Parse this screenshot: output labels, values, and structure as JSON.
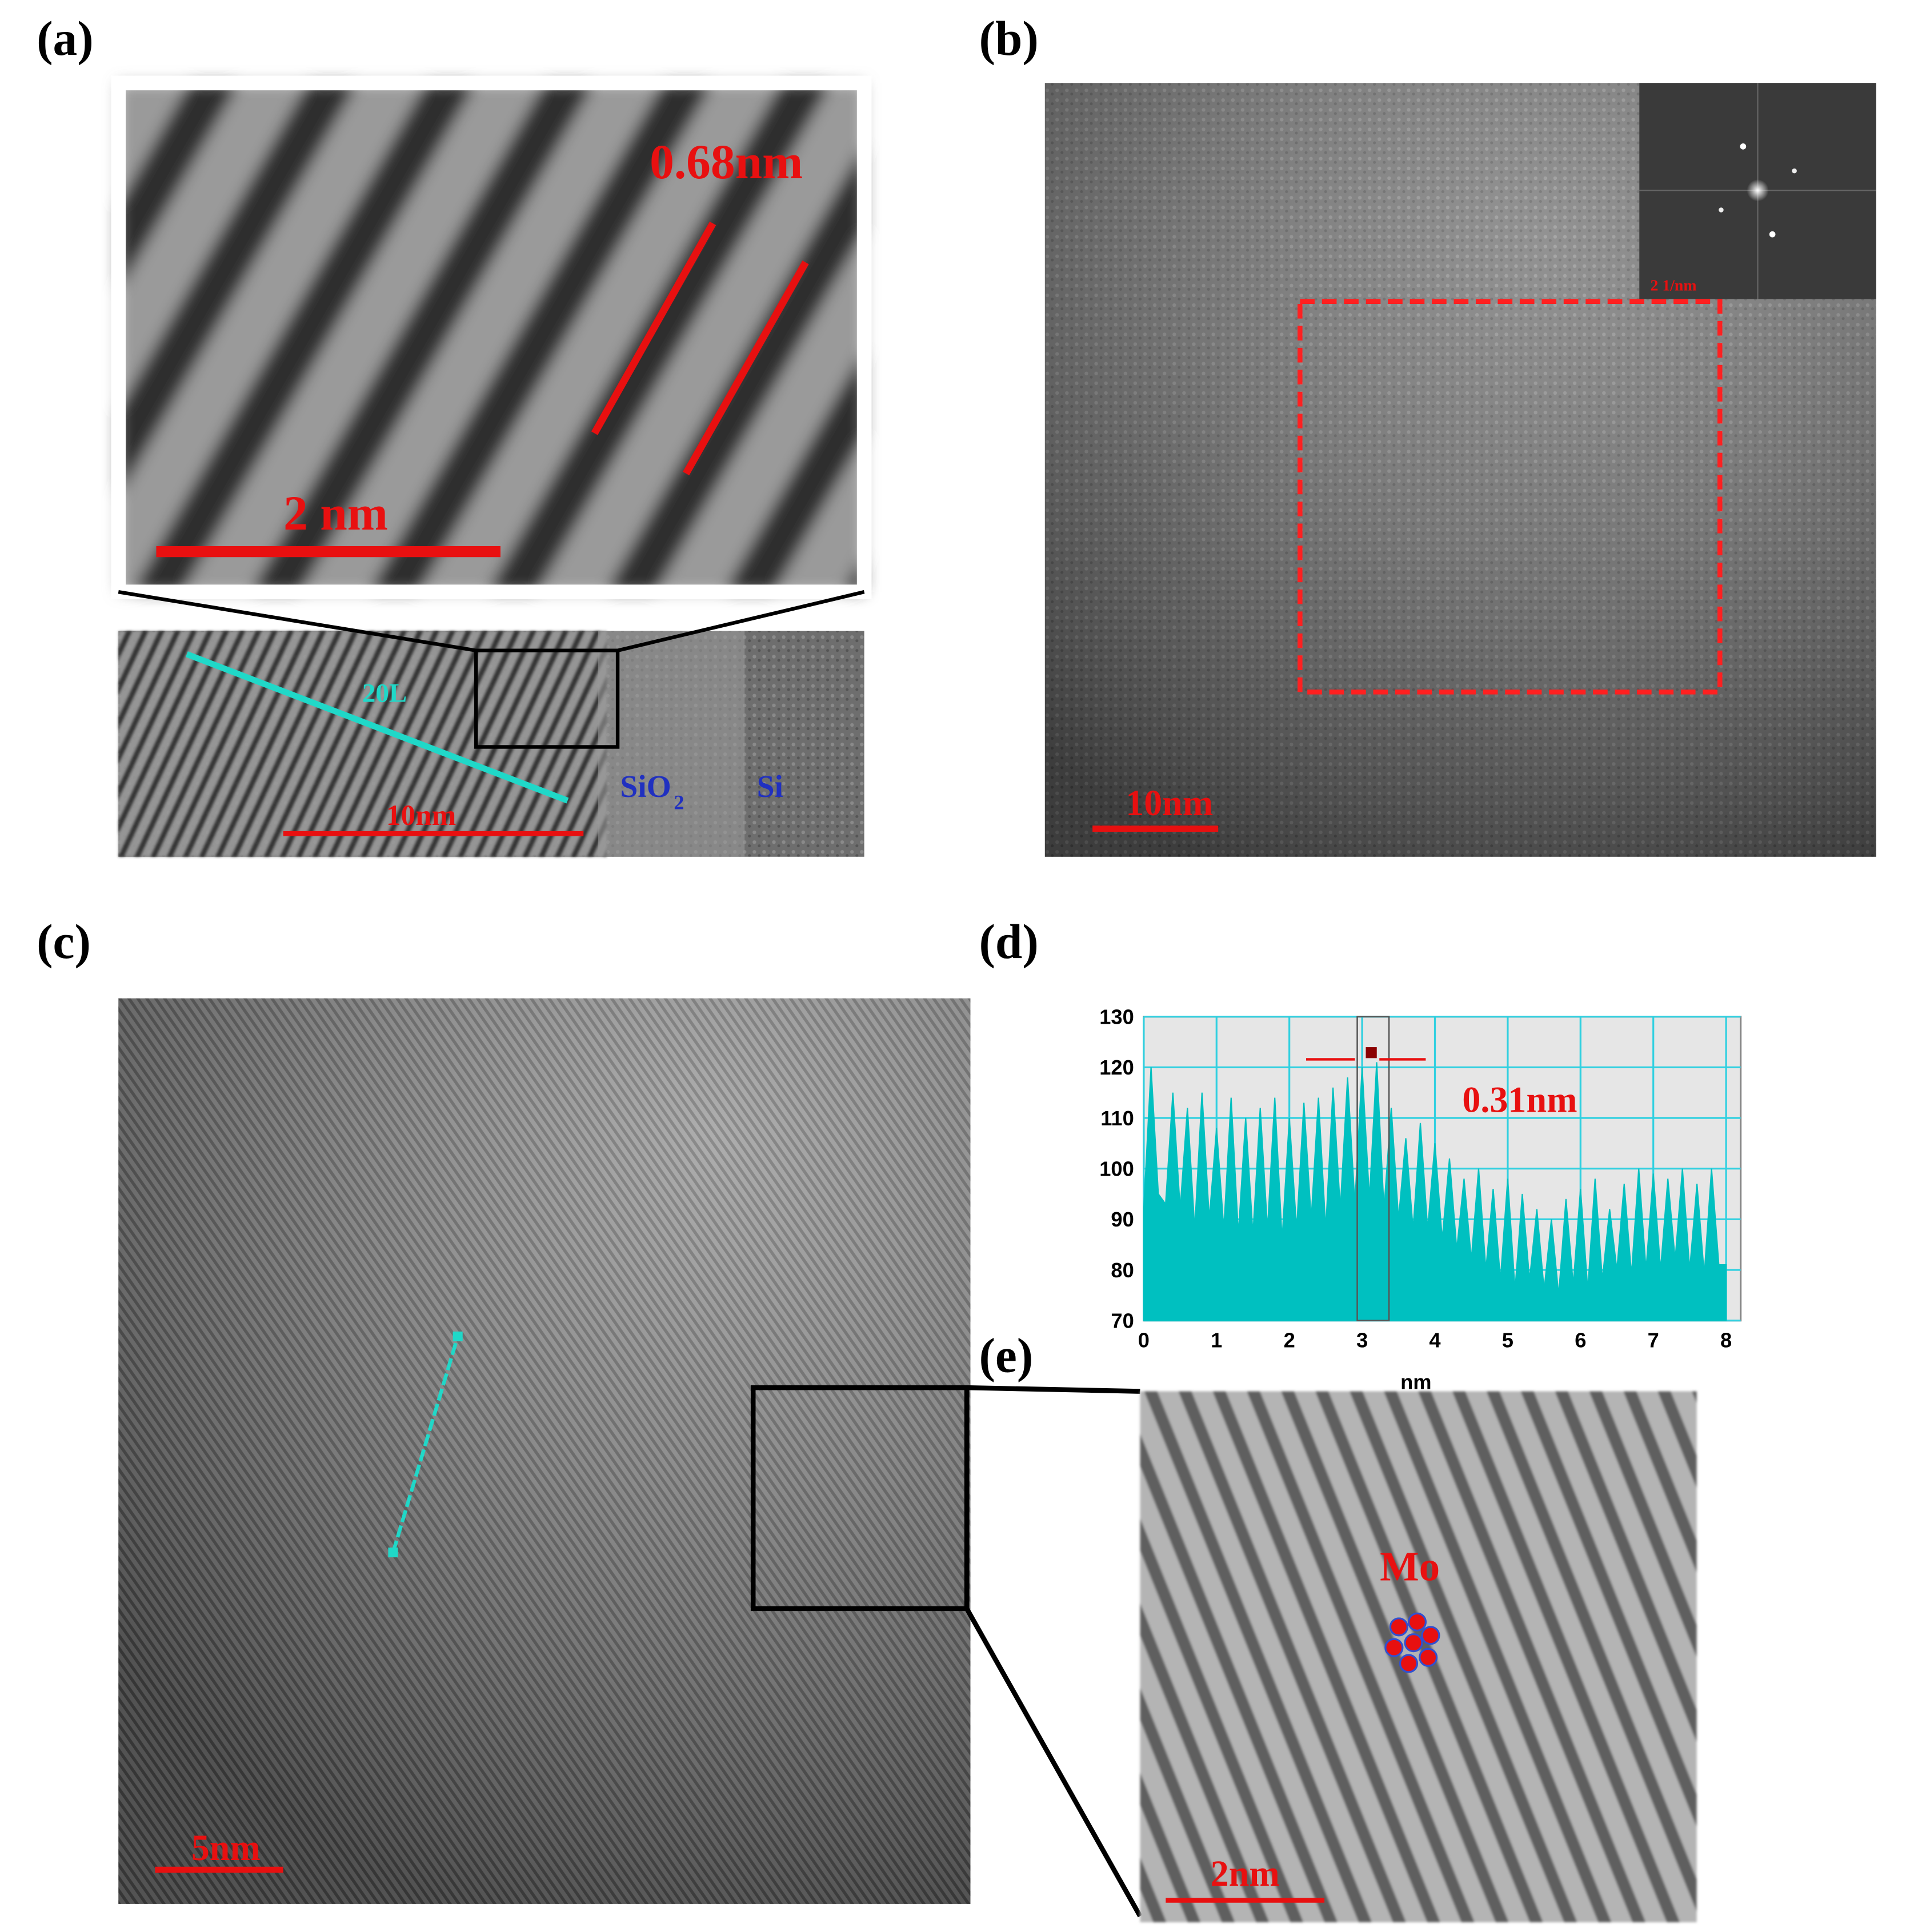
{
  "panels": {
    "a": {
      "label": "(a)",
      "spacing": "0.68nm",
      "zoom_scale": "2 nm",
      "layers": "20L",
      "scale": "10nm",
      "oxide": "SiO",
      "oxide_subscript": "2",
      "substrate": "Si"
    },
    "b": {
      "label": "(b)",
      "scale": "10nm",
      "fft_scale": "2 1/nm"
    },
    "c": {
      "label": "(c)",
      "scale": "5nm"
    },
    "d": {
      "label": "(d)"
    },
    "e": {
      "label": "(e)",
      "atom": "Mo",
      "scale": "2nm"
    }
  },
  "chart_data": {
    "type": "area",
    "xlabel": "nm",
    "annotation": "0.31nm",
    "color": "#00c0c0",
    "grid": true,
    "x": [
      0,
      0.1,
      0.2,
      0.3,
      0.4,
      0.5,
      0.6,
      0.7,
      0.8,
      0.9,
      1,
      1.1,
      1.2,
      1.3,
      1.4,
      1.5,
      1.6,
      1.7,
      1.8,
      1.9,
      2,
      2.1,
      2.2,
      2.3,
      2.4,
      2.5,
      2.6,
      2.7,
      2.8,
      2.9,
      3,
      3.1,
      3.2,
      3.3,
      3.4,
      3.5,
      3.6,
      3.7,
      3.8,
      3.9,
      4,
      4.1,
      4.2,
      4.3,
      4.4,
      4.5,
      4.6,
      4.7,
      4.8,
      4.9,
      5,
      5.1,
      5.2,
      5.3,
      5.4,
      5.5,
      5.6,
      5.7,
      5.8,
      5.9,
      6,
      6.1,
      6.2,
      6.3,
      6.4,
      6.5,
      6.6,
      6.7,
      6.8,
      6.9,
      7,
      7.1,
      7.2,
      7.3,
      7.4,
      7.5,
      7.6,
      7.7,
      7.8,
      7.9,
      8
    ],
    "values": [
      92,
      120,
      95,
      93,
      115,
      92,
      112,
      88,
      115,
      90,
      108,
      88,
      114,
      87,
      110,
      87,
      112,
      88,
      114,
      86,
      110,
      88,
      113,
      90,
      114,
      88,
      116,
      92,
      118,
      93,
      120,
      94,
      121,
      92,
      112,
      90,
      106,
      88,
      109,
      88,
      105,
      86,
      102,
      84,
      98,
      82,
      100,
      80,
      96,
      78,
      98,
      76,
      95,
      78,
      92,
      76,
      90,
      75,
      94,
      77,
      96,
      76,
      98,
      78,
      92,
      80,
      97,
      79,
      100,
      80,
      99,
      80,
      98,
      82,
      100,
      80,
      97,
      79,
      100,
      81,
      81
    ],
    "xlim": [
      0,
      8.2
    ],
    "xticks": [
      0,
      1,
      2,
      3,
      4,
      5,
      6,
      7,
      8
    ],
    "ylim": [
      70,
      130
    ],
    "yticks": [
      70,
      80,
      90,
      100,
      110,
      120,
      130
    ]
  }
}
